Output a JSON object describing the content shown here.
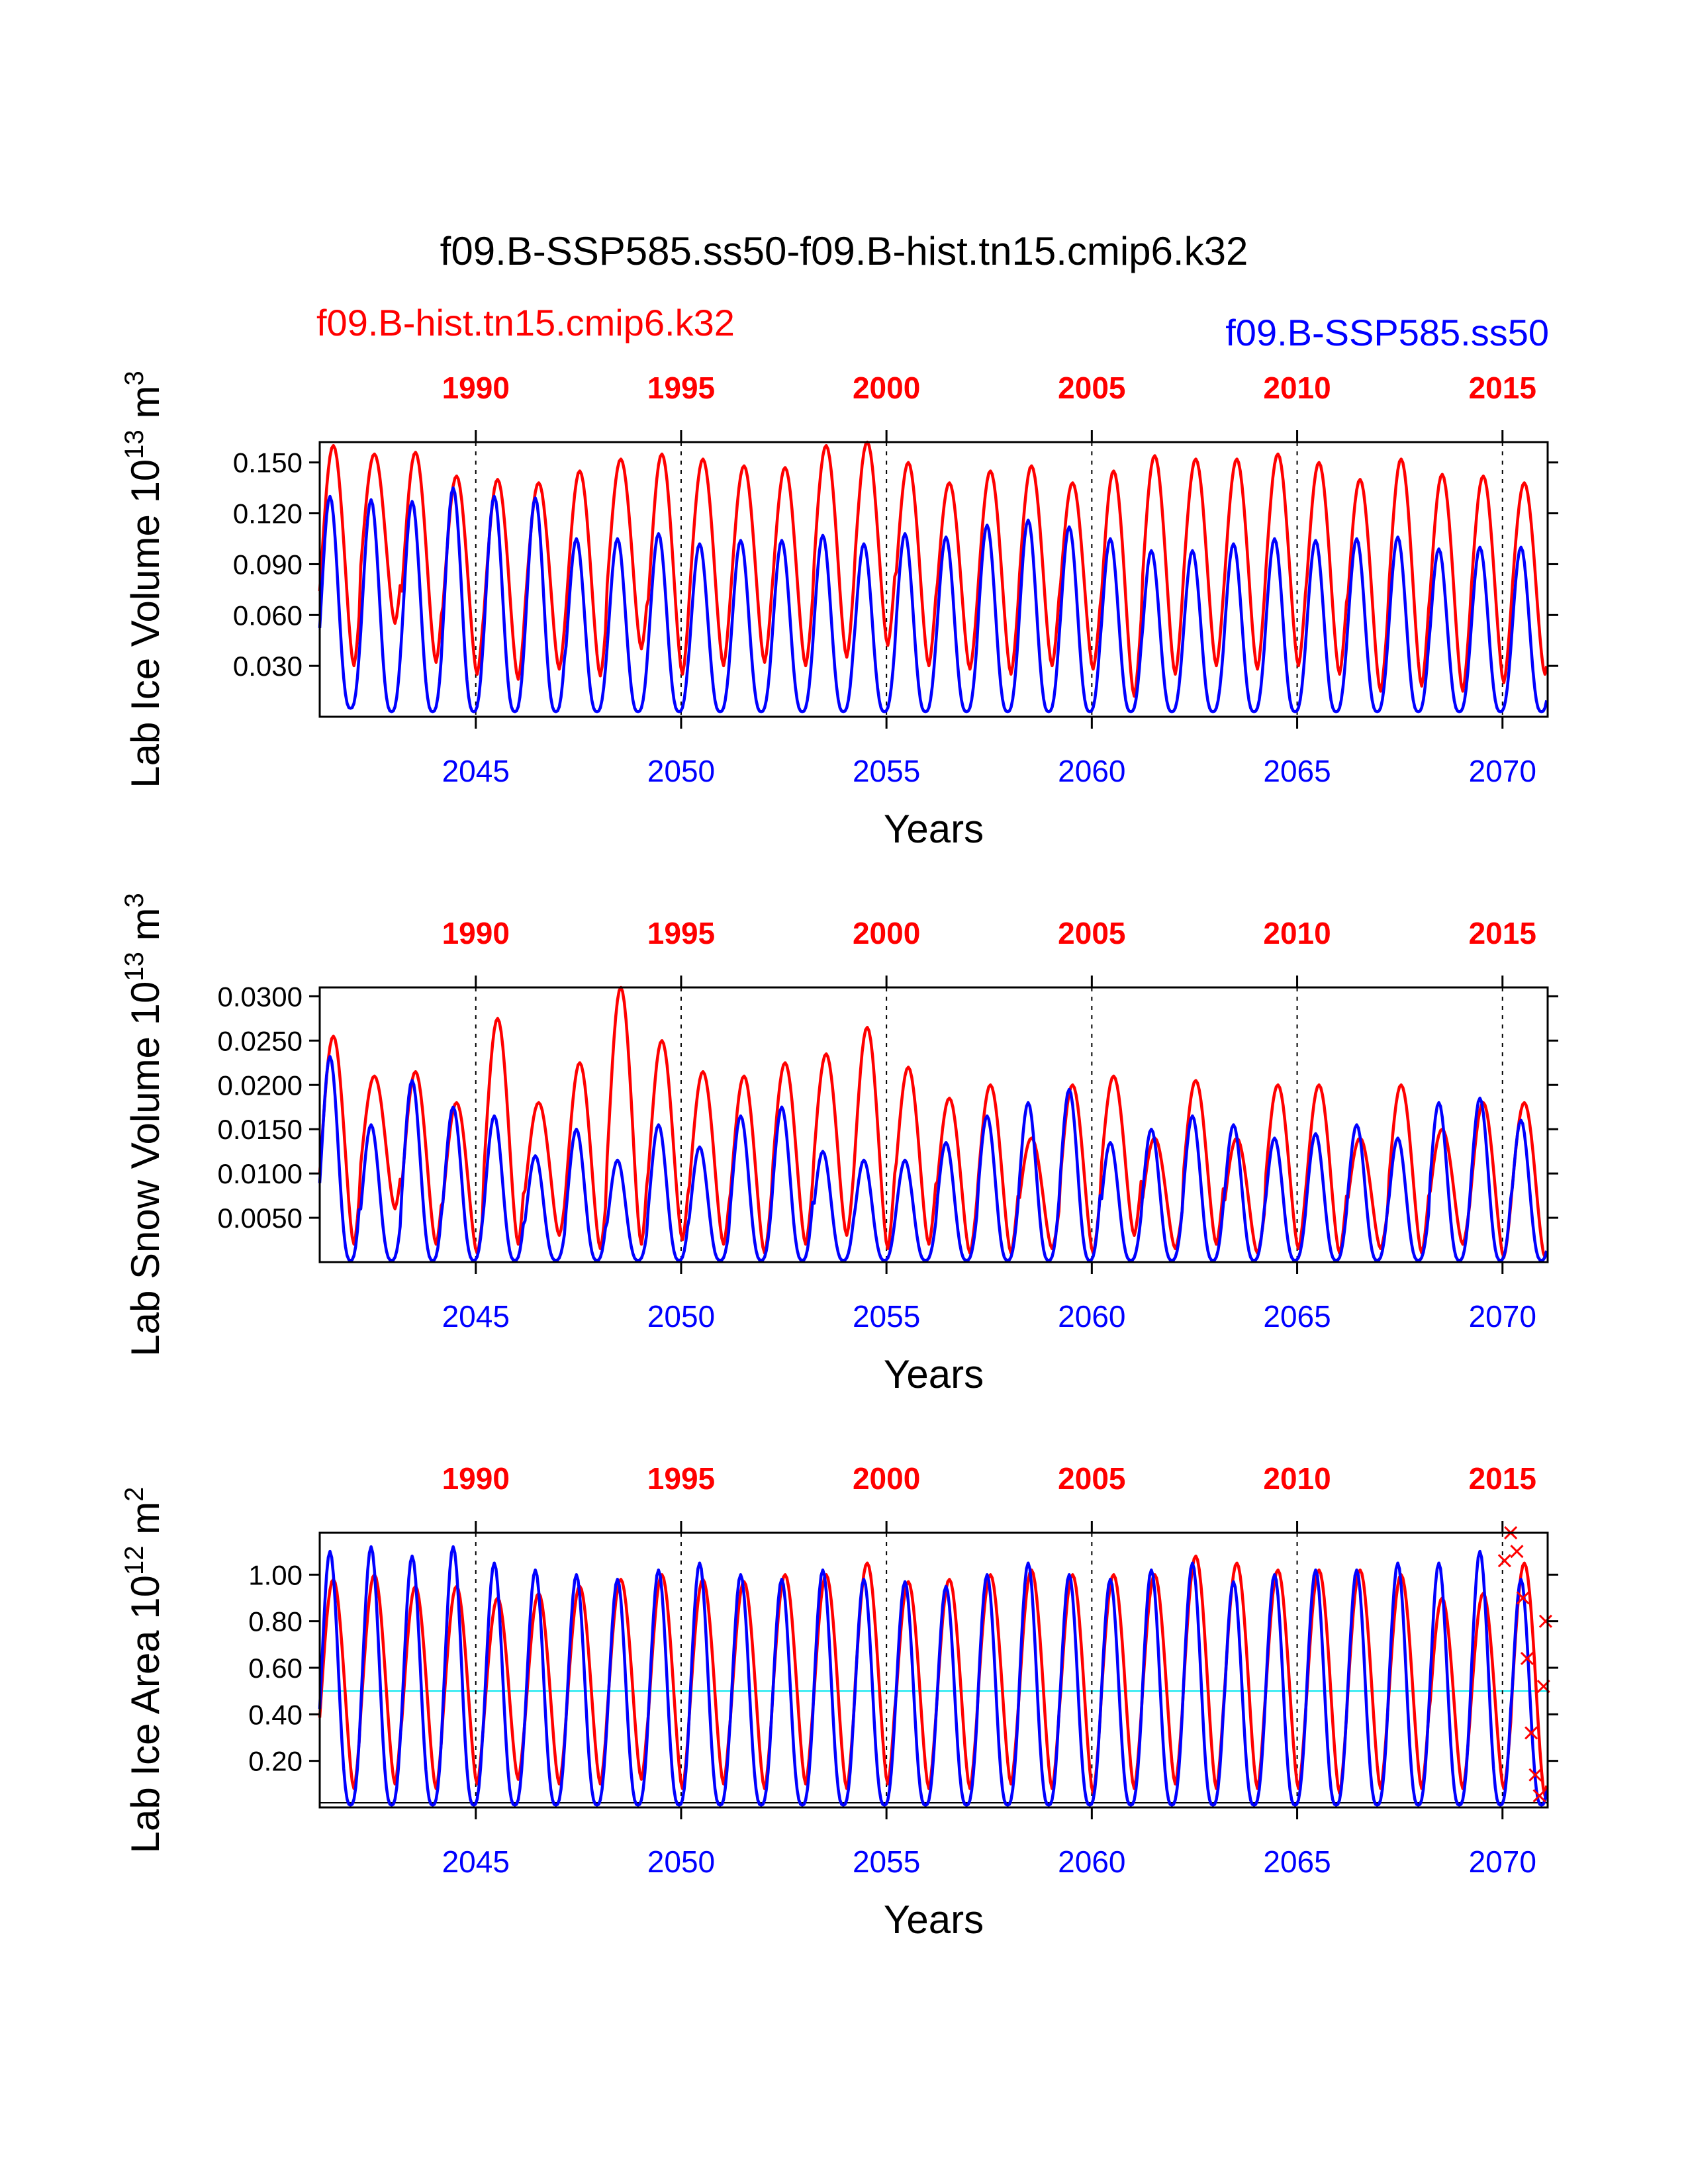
{
  "title": "f09.B-SSP585.ss50-f09.B-hist.tn15.cmip6.k32",
  "legend": {
    "red": "f09.B-hist.tn15.cmip6.k32",
    "blue": "f09.B-SSP585.ss50"
  },
  "colors": {
    "red": "#ff0000",
    "blue": "#0000ff",
    "reference": "#00e5ee",
    "axis": "#000000"
  },
  "chart_data": [
    {
      "type": "line",
      "ylabel": "Lab Ice Volume 10^13 m^3",
      "xlabel": "Years",
      "x_bottom_ticks": [
        "2045",
        "2050",
        "2055",
        "2060",
        "2065",
        "2070"
      ],
      "x_top_ticks": [
        "1990",
        "1995",
        "2000",
        "2005",
        "2010",
        "2015"
      ],
      "y_ticks": [
        "0.030",
        "0.060",
        "0.090",
        "0.120",
        "0.150"
      ],
      "ylim": [
        0,
        0.162
      ],
      "x_range_bottom": [
        2041.2,
        2071.1
      ],
      "x_range_top": [
        1986.2,
        2016.1
      ],
      "series": [
        {
          "name": "f09.B-hist.tn15.cmip6.k32",
          "color": "#ff0000",
          "seasonal_max": [
            0.16,
            0.155,
            0.156,
            0.142,
            0.14,
            0.138,
            0.145,
            0.152,
            0.155,
            0.152,
            0.148,
            0.147,
            0.16,
            0.162,
            0.15,
            0.138,
            0.145,
            0.148,
            0.138,
            0.145,
            0.154,
            0.152,
            0.152,
            0.155,
            0.15,
            0.14,
            0.152,
            0.143,
            0.142,
            0.138
          ],
          "seasonal_min": [
            0.03,
            0.055,
            0.032,
            0.025,
            0.022,
            0.028,
            0.024,
            0.04,
            0.025,
            0.03,
            0.032,
            0.03,
            0.035,
            0.042,
            0.03,
            0.028,
            0.025,
            0.03,
            0.028,
            0.012,
            0.025,
            0.03,
            0.028,
            0.03,
            0.025,
            0.015,
            0.018,
            0.015,
            0.02,
            0.025
          ]
        },
        {
          "name": "f09.B-SSP585.ss50",
          "color": "#0000ff",
          "seasonal_max": [
            0.13,
            0.128,
            0.127,
            0.135,
            0.13,
            0.129,
            0.105,
            0.105,
            0.108,
            0.102,
            0.104,
            0.104,
            0.107,
            0.102,
            0.108,
            0.106,
            0.113,
            0.116,
            0.112,
            0.105,
            0.098,
            0.098,
            0.102,
            0.105,
            0.104,
            0.105,
            0.106,
            0.099,
            0.1,
            0.1
          ],
          "seasonal_min": [
            0.005,
            0.003,
            0.003,
            0.003,
            0.003,
            0.003,
            0.003,
            0.003,
            0.003,
            0.003,
            0.003,
            0.003,
            0.003,
            0.003,
            0.003,
            0.003,
            0.003,
            0.003,
            0.003,
            0.003,
            0.003,
            0.003,
            0.003,
            0.003,
            0.003,
            0.003,
            0.003,
            0.003,
            0.003,
            0.003
          ]
        }
      ]
    },
    {
      "type": "line",
      "ylabel": "Lab Snow Volume 10^13 m^3",
      "xlabel": "Years",
      "x_bottom_ticks": [
        "2045",
        "2050",
        "2055",
        "2060",
        "2065",
        "2070"
      ],
      "x_top_ticks": [
        "1990",
        "1995",
        "2000",
        "2005",
        "2010",
        "2015"
      ],
      "y_ticks": [
        "0.0050",
        "0.0100",
        "0.0150",
        "0.0200",
        "0.0250",
        "0.0300"
      ],
      "ylim": [
        0,
        0.031
      ],
      "x_range_bottom": [
        2041.2,
        2071.1
      ],
      "x_range_top": [
        1986.2,
        2016.1
      ],
      "series": [
        {
          "name": "f09.B-hist.tn15.cmip6.k32",
          "color": "#ff0000",
          "seasonal_max": [
            0.0255,
            0.021,
            0.0215,
            0.018,
            0.0275,
            0.018,
            0.0225,
            0.031,
            0.025,
            0.0215,
            0.021,
            0.0225,
            0.0235,
            0.0265,
            0.022,
            0.0185,
            0.02,
            0.014,
            0.02,
            0.021,
            0.014,
            0.0205,
            0.014,
            0.02,
            0.02,
            0.014,
            0.02,
            0.015,
            0.018,
            0.018
          ],
          "seasonal_min": [
            0.002,
            0.006,
            0.002,
            0.001,
            0.002,
            0.003,
            0.0015,
            0.002,
            0.0025,
            0.002,
            0.001,
            0.002,
            0.003,
            0.0015,
            0.002,
            0.001,
            0.001,
            0.0015,
            0.001,
            0.003,
            0.0015,
            0.002,
            0.001,
            0.0015,
            0.001,
            0.0015,
            0.001,
            0.002,
            0.0005,
            0.0005
          ]
        },
        {
          "name": "f09.B-SSP585.ss50",
          "color": "#0000ff",
          "seasonal_max": [
            0.0232,
            0.0155,
            0.0205,
            0.0175,
            0.0165,
            0.012,
            0.015,
            0.0115,
            0.0155,
            0.013,
            0.0165,
            0.0175,
            0.0125,
            0.0115,
            0.0115,
            0.0135,
            0.0165,
            0.018,
            0.0195,
            0.0135,
            0.015,
            0.0165,
            0.0155,
            0.014,
            0.0145,
            0.0155,
            0.014,
            0.018,
            0.0185,
            0.016
          ],
          "seasonal_min": [
            0.0002,
            0.0002,
            0.0002,
            0.0002,
            0.0002,
            0.0002,
            0.0002,
            0.0002,
            0.0002,
            0.0002,
            0.0002,
            0.0002,
            0.0002,
            0.0002,
            0.0002,
            0.0002,
            0.0002,
            0.0002,
            0.0002,
            0.0002,
            0.0002,
            0.0002,
            0.0002,
            0.0002,
            0.0002,
            0.0002,
            0.0002,
            0.0002,
            0.0002,
            0.0002
          ]
        }
      ]
    },
    {
      "type": "line",
      "ylabel": "Lab Ice Area 10^12 m^2",
      "xlabel": "Years",
      "x_bottom_ticks": [
        "2045",
        "2050",
        "2055",
        "2060",
        "2065",
        "2070"
      ],
      "x_top_ticks": [
        "1990",
        "1995",
        "2000",
        "2005",
        "2010",
        "2015"
      ],
      "y_ticks": [
        "0.20",
        "0.40",
        "0.60",
        "0.80",
        "1.00"
      ],
      "ylim": [
        0,
        1.18
      ],
      "x_range_bottom": [
        2041.2,
        2071.1
      ],
      "x_range_top": [
        1986.2,
        2016.1
      ],
      "reference_lines": [
        0.5,
        0.02
      ],
      "series": [
        {
          "name": "f09.B-hist.tn15.cmip6.k32",
          "color": "#ff0000",
          "seasonal_max": [
            0.98,
            1.0,
            0.95,
            0.95,
            0.9,
            0.92,
            0.95,
            0.98,
            1.0,
            0.98,
            0.97,
            1.0,
            1.0,
            1.05,
            0.97,
            0.98,
            1.0,
            1.02,
            1.0,
            1.0,
            1.0,
            1.08,
            1.05,
            1.02,
            1.02,
            1.02,
            1.0,
            0.9,
            0.92,
            1.05
          ],
          "seasonal_min": [
            0.08,
            0.1,
            0.08,
            0.1,
            0.12,
            0.1,
            0.1,
            0.12,
            0.08,
            0.1,
            0.08,
            0.1,
            0.08,
            0.1,
            0.08,
            0.08,
            0.1,
            0.08,
            0.06,
            0.08,
            0.1,
            0.08,
            0.08,
            0.08,
            0.06,
            0.08,
            0.08,
            0.08,
            0.08,
            0.05
          ]
        },
        {
          "name": "f09.B-SSP585.ss50",
          "color": "#0000ff",
          "seasonal_max": [
            1.1,
            1.12,
            1.08,
            1.12,
            1.05,
            1.02,
            1.0,
            0.98,
            1.02,
            1.05,
            1.0,
            0.98,
            1.02,
            0.98,
            0.97,
            0.95,
            1.0,
            1.05,
            1.0,
            0.98,
            1.02,
            1.05,
            0.97,
            1.0,
            1.02,
            1.02,
            1.05,
            1.05,
            1.1,
            0.98
          ],
          "seasonal_min": [
            0.01,
            0.01,
            0.01,
            0.01,
            0.01,
            0.01,
            0.01,
            0.01,
            0.01,
            0.01,
            0.01,
            0.01,
            0.01,
            0.01,
            0.01,
            0.01,
            0.01,
            0.01,
            0.01,
            0.01,
            0.01,
            0.01,
            0.01,
            0.01,
            0.01,
            0.01,
            0.01,
            0.01,
            0.01,
            0.01
          ]
        },
        {
          "name": "",
          "color": "#ff0000",
          "type": "scatter",
          "x": [
            2070.05,
            2070.2,
            2070.35,
            2070.5,
            2070.6,
            2070.7,
            2070.8,
            2070.9,
            2071.0,
            2071.05
          ],
          "y": [
            1.06,
            1.18,
            1.1,
            0.9,
            0.64,
            0.32,
            0.14,
            0.05,
            0.52,
            0.8
          ]
        }
      ]
    }
  ]
}
